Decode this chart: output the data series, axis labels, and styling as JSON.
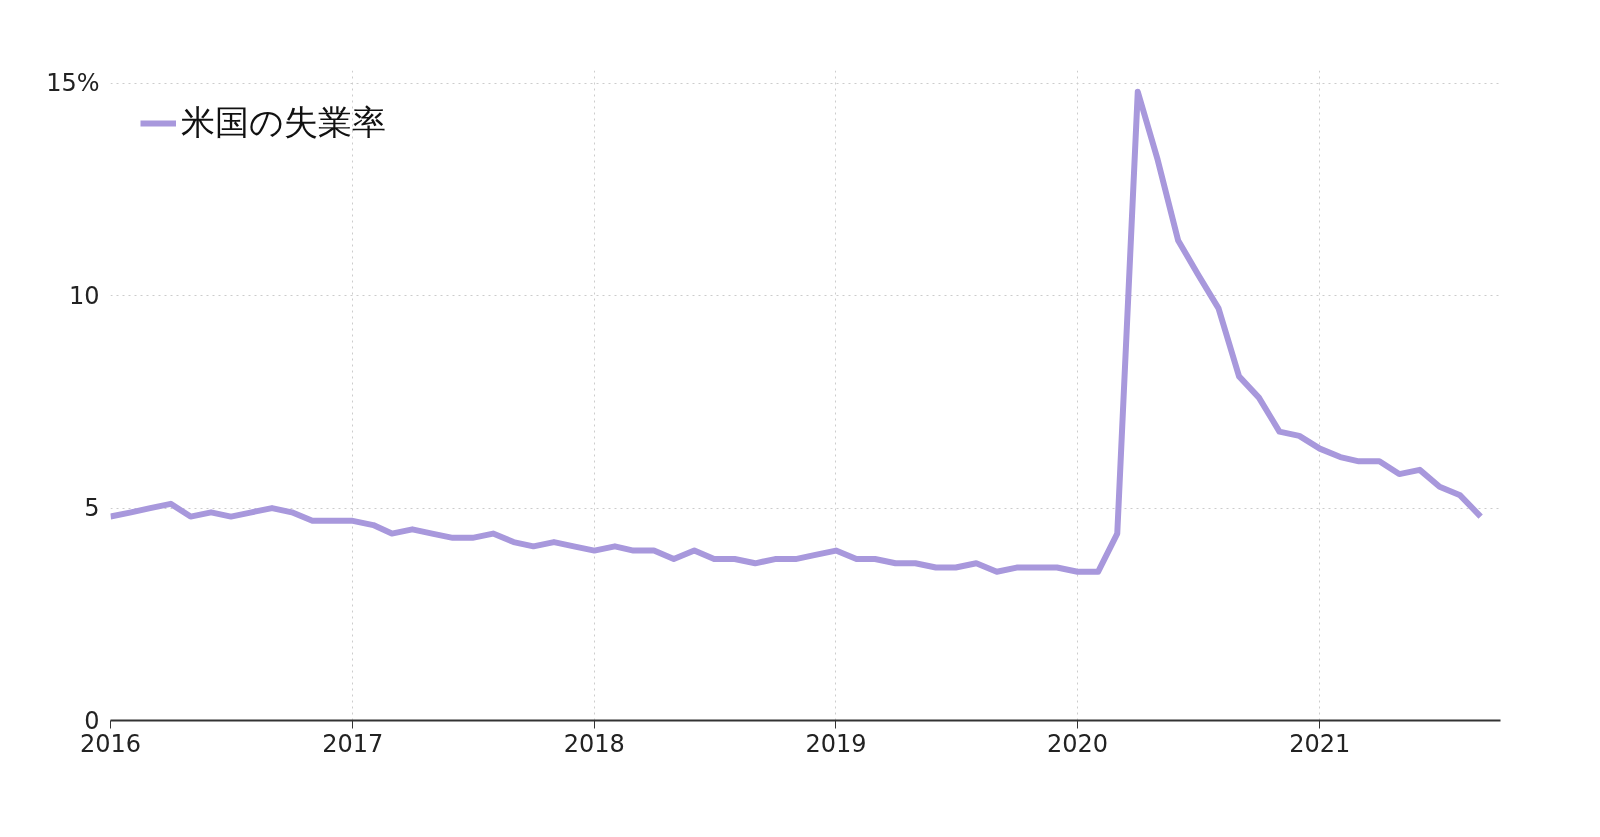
{
  "chart_data": {
    "type": "line",
    "x": [
      "2016-01",
      "2016-02",
      "2016-03",
      "2016-04",
      "2016-05",
      "2016-06",
      "2016-07",
      "2016-08",
      "2016-09",
      "2016-10",
      "2016-11",
      "2016-12",
      "2017-01",
      "2017-02",
      "2017-03",
      "2017-04",
      "2017-05",
      "2017-06",
      "2017-07",
      "2017-08",
      "2017-09",
      "2017-10",
      "2017-11",
      "2017-12",
      "2018-01",
      "2018-02",
      "2018-03",
      "2018-04",
      "2018-05",
      "2018-06",
      "2018-07",
      "2018-08",
      "2018-09",
      "2018-10",
      "2018-11",
      "2018-12",
      "2019-01",
      "2019-02",
      "2019-03",
      "2019-04",
      "2019-05",
      "2019-06",
      "2019-07",
      "2019-08",
      "2019-09",
      "2019-10",
      "2019-11",
      "2019-12",
      "2020-01",
      "2020-02",
      "2020-03",
      "2020-04",
      "2020-05",
      "2020-06",
      "2020-07",
      "2020-08",
      "2020-09",
      "2020-10",
      "2020-11",
      "2020-12",
      "2021-01",
      "2021-02",
      "2021-03",
      "2021-04",
      "2021-05",
      "2021-06",
      "2021-07",
      "2021-08",
      "2021-09"
    ],
    "series": [
      {
        "name": "米国の失業率",
        "color": "#a898dc",
        "values": [
          4.8,
          4.9,
          5.0,
          5.1,
          4.8,
          4.9,
          4.8,
          4.9,
          5.0,
          4.9,
          4.7,
          4.7,
          4.7,
          4.6,
          4.4,
          4.5,
          4.4,
          4.3,
          4.3,
          4.4,
          4.2,
          4.1,
          4.2,
          4.1,
          4.0,
          4.1,
          4.0,
          4.0,
          3.8,
          4.0,
          3.8,
          3.8,
          3.7,
          3.8,
          3.8,
          3.9,
          4.0,
          3.8,
          3.8,
          3.7,
          3.7,
          3.6,
          3.6,
          3.7,
          3.5,
          3.6,
          3.6,
          3.6,
          3.5,
          3.5,
          4.4,
          14.8,
          13.2,
          11.3,
          10.5,
          9.7,
          8.1,
          7.6,
          6.8,
          6.7,
          6.4,
          6.2,
          6.1,
          6.1,
          5.8,
          5.9,
          5.5,
          5.3,
          4.8
        ]
      }
    ],
    "xlim": [
      "2016-01",
      "2021-10"
    ],
    "xticks": [
      "2016",
      "2017",
      "2018",
      "2019",
      "2020",
      "2021"
    ],
    "ylim": [
      0,
      15.3
    ],
    "yticks": [
      0,
      5,
      10,
      {
        "value": 15,
        "label": "15%"
      }
    ],
    "grid": true,
    "legend": "top left",
    "line_style": "solid",
    "marker": "none"
  }
}
